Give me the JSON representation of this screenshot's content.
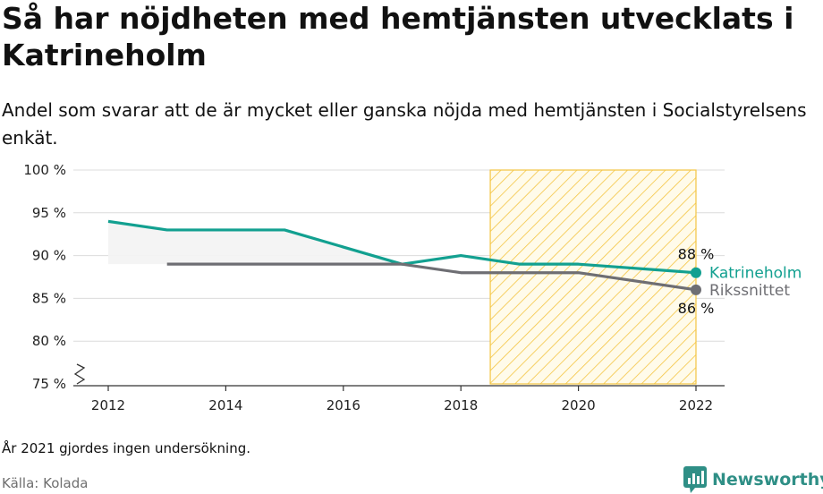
{
  "title": "Så har nöjdheten med hemtjänsten utvecklats i Katrineholm",
  "subtitle": "Andel som svarar att de är mycket eller ganska nöjda med hemtjänsten i Socialstyrelsens enkät.",
  "note": "År 2021 gjordes ingen undersökning.",
  "source": "Källa: Kolada",
  "brand": {
    "name": "Newsworthy",
    "icon": "newsworthy-logo-icon"
  },
  "colors": {
    "katrineholm": "#12a090",
    "riket": "#6e6e73",
    "shade": "#f4c542",
    "grid": "#dcdcdc",
    "brand": "#2f8f86"
  },
  "chart_data": {
    "type": "line",
    "x": [
      2012,
      2013,
      2014,
      2015,
      2016,
      2017,
      2018,
      2019,
      2020,
      2022
    ],
    "series": [
      {
        "name": "Katrineholm",
        "values": [
          94,
          93,
          93,
          93,
          91,
          89,
          90,
          89,
          89,
          88
        ],
        "end_label": "88 %"
      },
      {
        "name": "Rikssnittet",
        "values": [
          null,
          89,
          89,
          89,
          89,
          89,
          88,
          88,
          88,
          86
        ],
        "end_label": "86 %"
      }
    ],
    "xlim": [
      2012,
      2022
    ],
    "ylim": [
      75,
      100
    ],
    "x_ticks": [
      "2012",
      "2014",
      "2016",
      "2018",
      "2020",
      "2022"
    ],
    "y_ticks": [
      "75 %",
      "80 %",
      "85 %",
      "90 %",
      "95 %",
      "100 %"
    ],
    "highlight_range": [
      2018.5,
      2022
    ],
    "axis_break": true,
    "grid": true
  }
}
